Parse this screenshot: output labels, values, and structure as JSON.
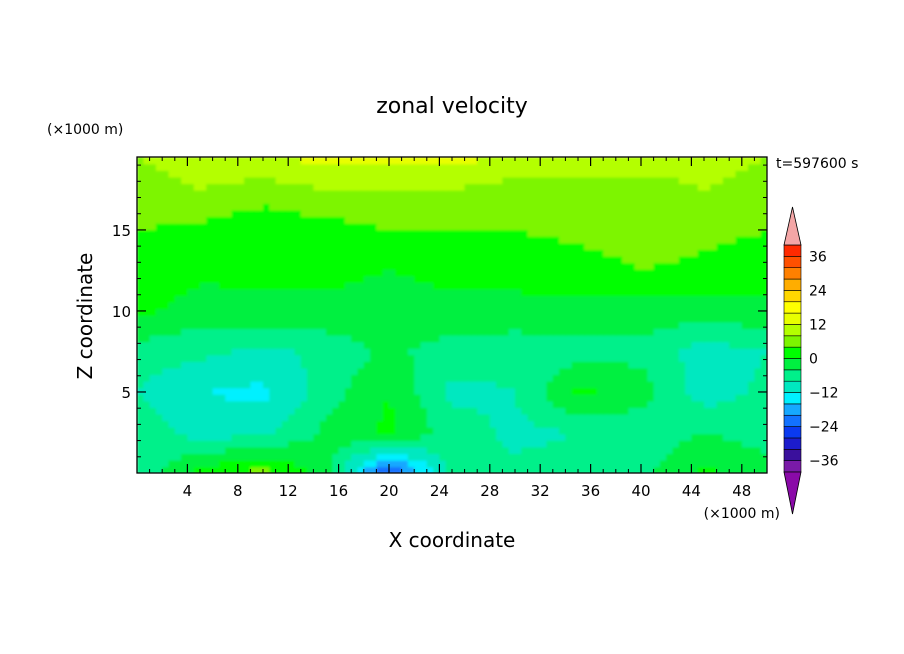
{
  "chart_data": {
    "type": "heatmap",
    "title": "zonal velocity",
    "xlabel": "X coordinate",
    "ylabel": "Z coordinate",
    "x_unit_note": "(×1000 m)",
    "y_unit_note": "(×1000 m)",
    "time_label": "t=597600 s",
    "xlim": [
      0,
      50
    ],
    "ylim": [
      0,
      19.5
    ],
    "x_ticks": [
      4,
      8,
      12,
      16,
      20,
      24,
      28,
      32,
      36,
      40,
      44,
      48
    ],
    "y_ticks": [
      5,
      10,
      15
    ],
    "colorbar": {
      "levels": [
        -40,
        -36,
        -32,
        -28,
        -24,
        -20,
        -16,
        -12,
        -8,
        -4,
        0,
        4,
        8,
        12,
        16,
        20,
        24,
        28,
        32,
        36,
        40
      ],
      "tick_values": [
        36,
        24,
        12,
        0,
        -12,
        -24,
        -36
      ],
      "tick_labels": [
        "36",
        "24",
        "12",
        "0",
        "−12",
        "−24",
        "−36"
      ],
      "colors": [
        "#7a1aa8",
        "#3a109c",
        "#1c1ccc",
        "#0a3af0",
        "#1272ff",
        "#16a8ff",
        "#00f0ff",
        "#00e8c0",
        "#00f08a",
        "#00f040",
        "#00ff00",
        "#7df500",
        "#b4ff00",
        "#e8ff00",
        "#ffff00",
        "#ffd700",
        "#ffad00",
        "#ff8000",
        "#ff5000",
        "#ff2a00",
        "#ff0000"
      ],
      "under_color": "#8a0aa8",
      "over_color": "#f4a6a6"
    },
    "grid_x": [
      0,
      5,
      10,
      15,
      20,
      25,
      30,
      35,
      40,
      45,
      50
    ],
    "grid_z": [
      19.5,
      17.5,
      15,
      12.5,
      10,
      7.5,
      5,
      2.5,
      0
    ],
    "values": [
      [
        8,
        10,
        12,
        13,
        13,
        13,
        12,
        12,
        10,
        10,
        8
      ],
      [
        6,
        8,
        6,
        8,
        8,
        8,
        6,
        6,
        6,
        8,
        6
      ],
      [
        4,
        3,
        1,
        2,
        4,
        4,
        4,
        5,
        6,
        5,
        4
      ],
      [
        3,
        1,
        1,
        1,
        0,
        1,
        1,
        2,
        4,
        3,
        2
      ],
      [
        1,
        -2,
        -1,
        -1,
        -2,
        -1,
        -1,
        -1,
        -2,
        -2,
        -1
      ],
      [
        -6,
        -7,
        -9,
        -7,
        -3,
        -6,
        -7,
        -6,
        -5,
        -10,
        -8
      ],
      [
        -8,
        -12,
        -13,
        -6,
        0,
        -9,
        -8,
        1,
        -2,
        -10,
        -7
      ],
      [
        -5,
        -10,
        -9,
        -3,
        1,
        -6,
        -9,
        -8,
        -7,
        -4,
        -6
      ],
      [
        -8,
        2,
        6,
        -2,
        -26,
        -6,
        -7,
        -6,
        -5,
        1,
        -2
      ]
    ]
  }
}
